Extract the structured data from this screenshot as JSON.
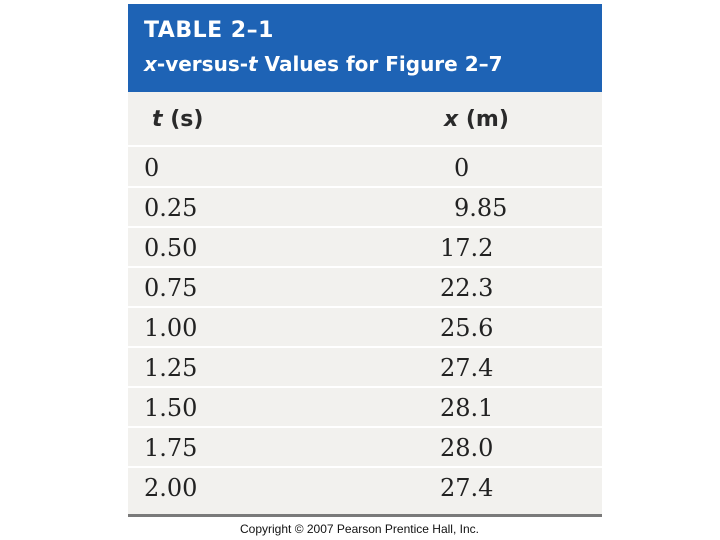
{
  "table": {
    "number": "TABLE 2–1",
    "caption": {
      "var_x": "x",
      "middle": "-versus-",
      "var_t": "t",
      "rest": " Values for Figure 2–7"
    },
    "headers": {
      "t_symbol": "t",
      "t_unit": " (s)",
      "x_symbol": "x",
      "x_unit": " (m)"
    },
    "rows": [
      {
        "t": "0",
        "x": "0"
      },
      {
        "t": "0.25",
        "x": "9.85"
      },
      {
        "t": "0.50",
        "x": "17.2"
      },
      {
        "t": "0.75",
        "x": "22.3"
      },
      {
        "t": "1.00",
        "x": "25.6"
      },
      {
        "t": "1.25",
        "x": "27.4"
      },
      {
        "t": "1.50",
        "x": "28.1"
      },
      {
        "t": "1.75",
        "x": "28.0"
      },
      {
        "t": "2.00",
        "x": "27.4"
      }
    ]
  },
  "footer": {
    "copyright": "Copyright © 2007 Pearson Prentice Hall, Inc."
  },
  "colors": {
    "header_bg": "#1e63b5",
    "table_bg": "#f2f1ee"
  }
}
